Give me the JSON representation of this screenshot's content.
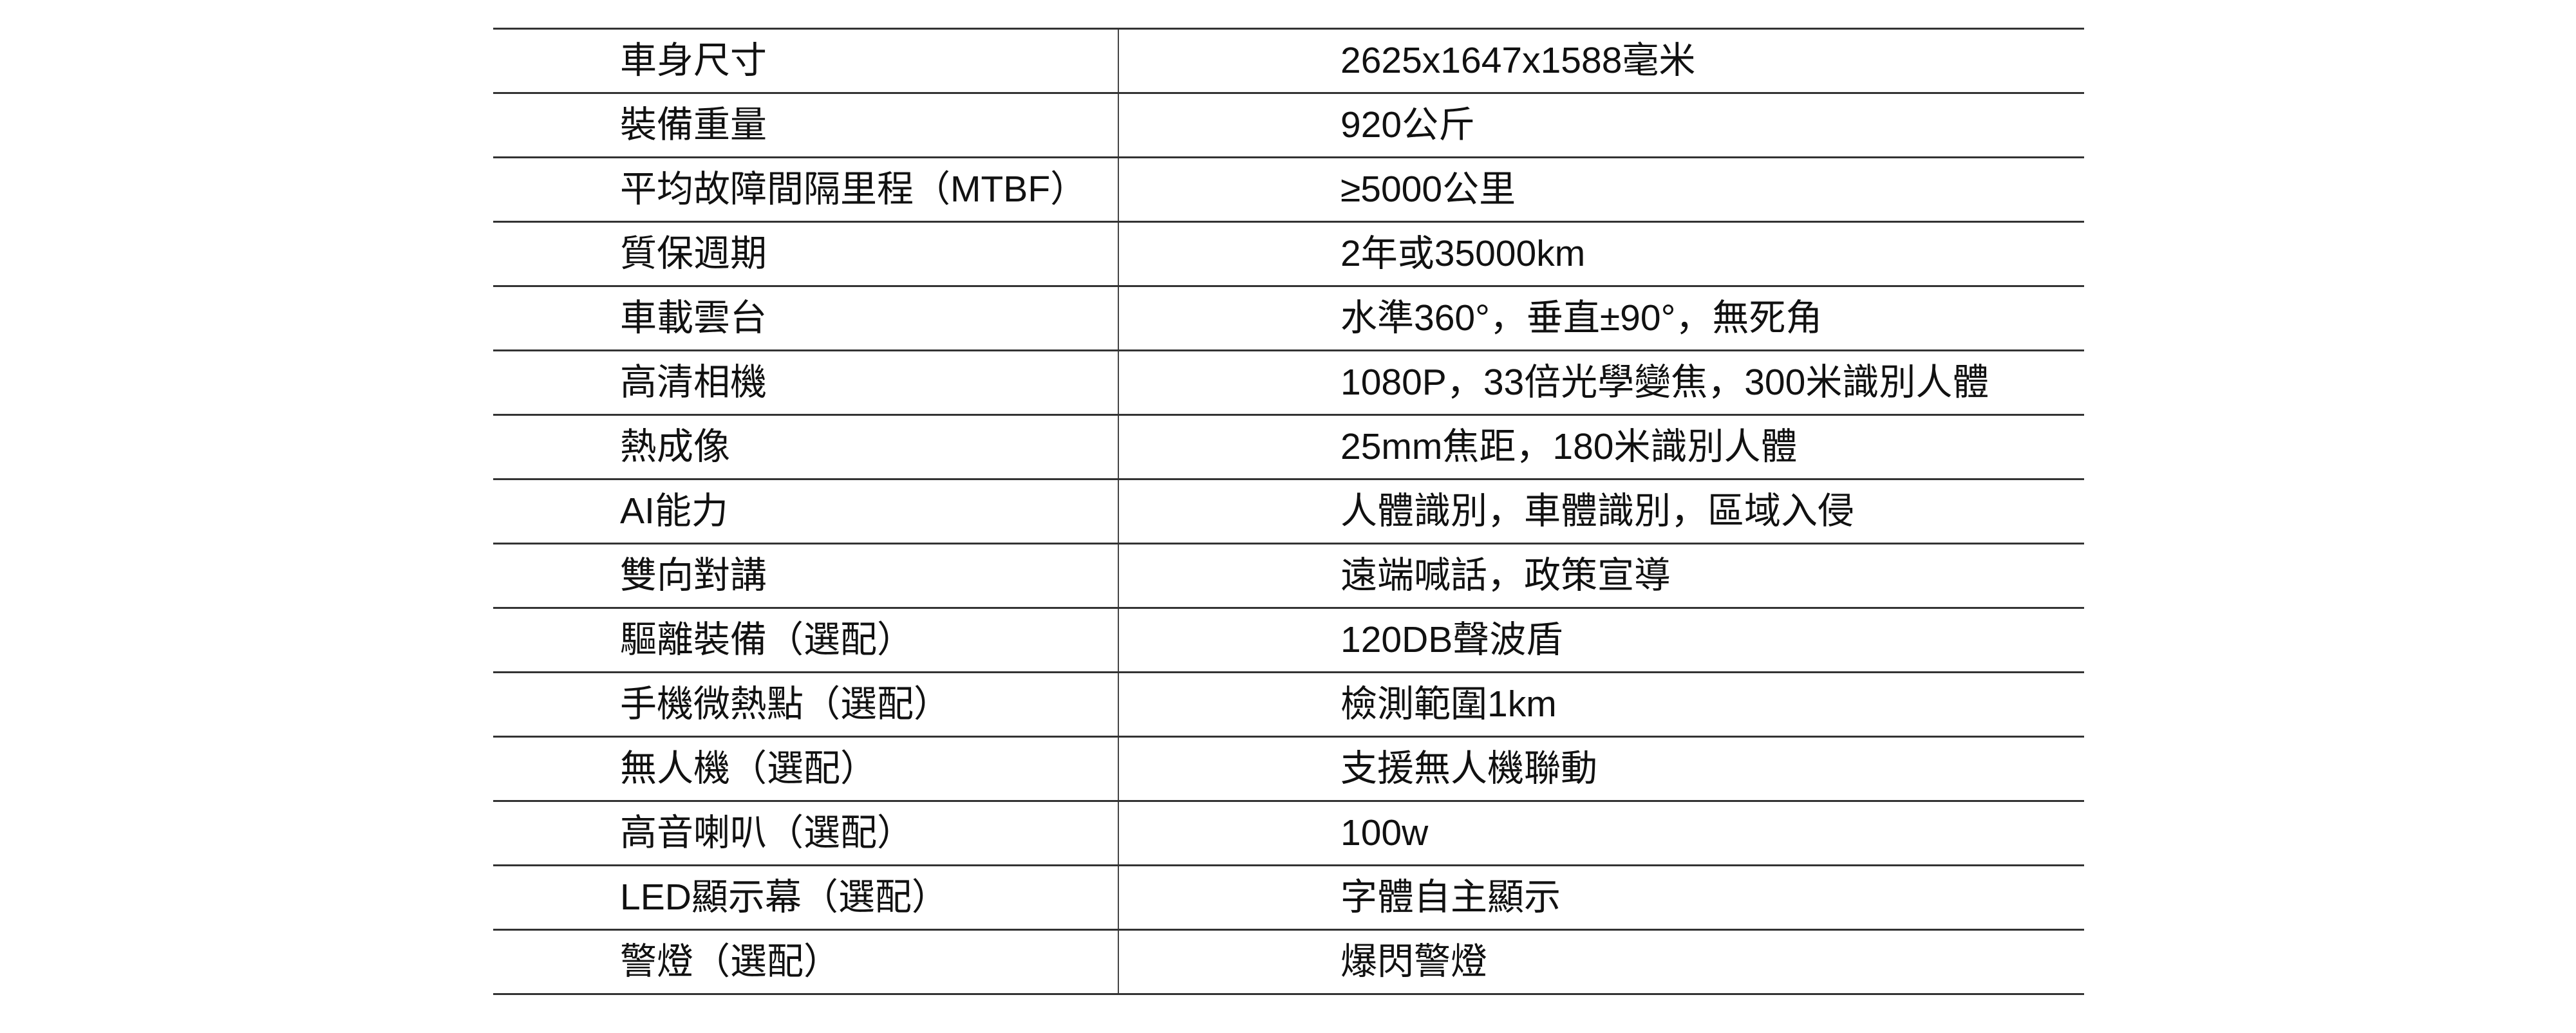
{
  "colors": {
    "background": "#ffffff",
    "text": "#111111",
    "row_line": "#333333",
    "divider_line": "#444444"
  },
  "spec_table": {
    "rows": [
      {
        "label": "車身尺寸",
        "value": "2625x1647x1588毫米"
      },
      {
        "label": "裝備重量",
        "value": "920公斤"
      },
      {
        "label": "平均故障間隔里程（MTBF）",
        "value": "≥5000公里"
      },
      {
        "label": "質保週期",
        "value": "2年或35000km"
      },
      {
        "label": "車載雲台",
        "value": "水準360°，垂直±90°，無死角"
      },
      {
        "label": "高清相機",
        "value": "1080P，33倍光學變焦，300米識別人體"
      },
      {
        "label": "熱成像",
        "value": "25mm焦距，180米識別人體"
      },
      {
        "label": "AI能力",
        "value": "人體識別，車體識別，區域入侵"
      },
      {
        "label": "雙向對講",
        "value": "遠端喊話，政策宣導"
      },
      {
        "label": "驅離裝備（選配）",
        "value": "120DB聲波盾"
      },
      {
        "label": "手機微熱點（選配）",
        "value": "檢測範圍1km"
      },
      {
        "label": "無人機（選配）",
        "value": "支援無人機聯動"
      },
      {
        "label": "高音喇叭（選配）",
        "value": "100w"
      },
      {
        "label": "LED顯示幕（選配）",
        "value": "字體自主顯示"
      },
      {
        "label": "警燈（選配）",
        "value": "爆閃警燈"
      }
    ]
  }
}
